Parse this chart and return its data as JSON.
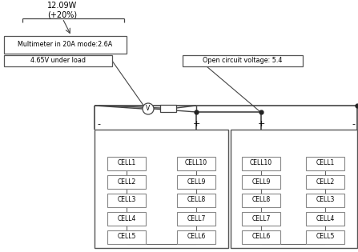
{
  "bg_color": "#ffffff",
  "power_label": "12.09W\n(+20%)",
  "multimeter_label": "Multimeter in 20A mode:2.6A",
  "voltage_load_label": "4.65V under load",
  "open_circuit_label": "Open circuit voltage: 5.4",
  "panel1_cells_left": [
    "CELL1",
    "CELL2",
    "CELL3",
    "CELL4",
    "CELL5"
  ],
  "panel1_cells_right": [
    "CELL10",
    "CELL9",
    "CELL8",
    "CELL7",
    "CELL6"
  ],
  "panel2_cells_left": [
    "CELL10",
    "CELL9",
    "CELL8",
    "CELL7",
    "CELL6"
  ],
  "panel2_cells_right": [
    "CELL1",
    "CELL2",
    "CELL3",
    "CELL4",
    "CELL5"
  ],
  "line_color": "#444444",
  "text_color": "#000000"
}
